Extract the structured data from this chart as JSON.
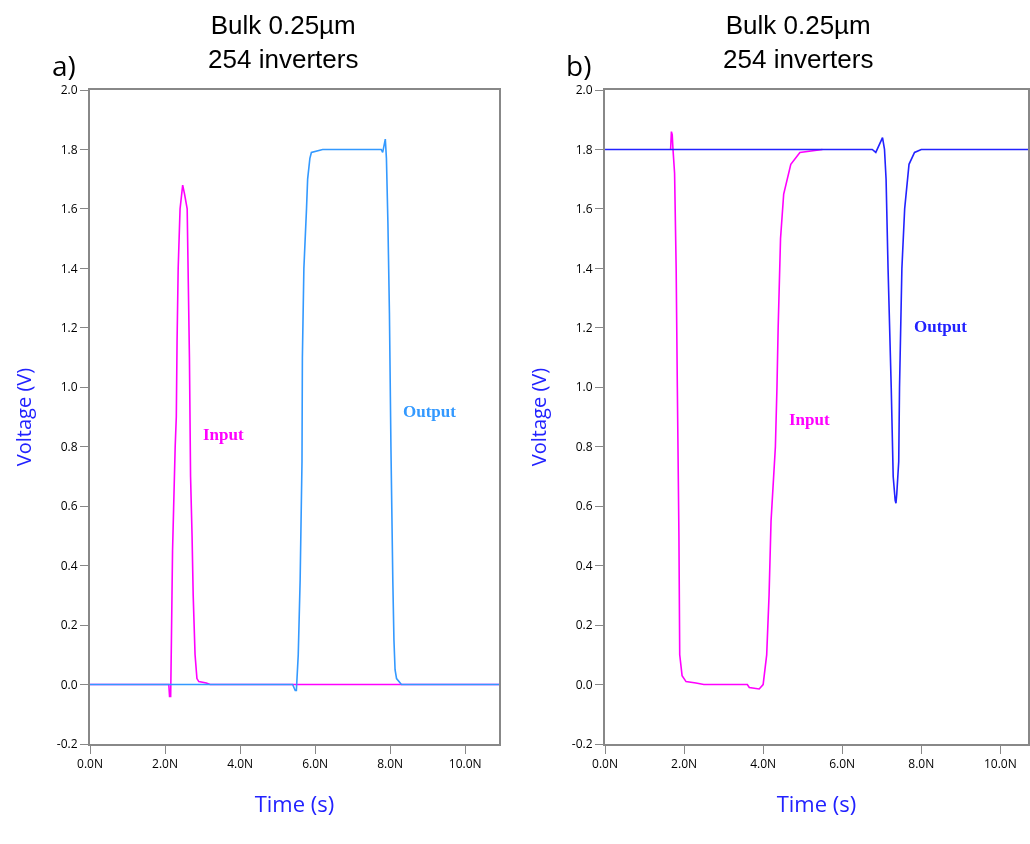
{
  "chart_data": [
    {
      "type": "line",
      "title": "Bulk 0.25µm\n254 inverters",
      "xlabel": "Time (s)",
      "ylabel": "Voltage (V)",
      "annotations": [
        "a)"
      ],
      "xlim": [
        0,
        10.9
      ],
      "ylim": [
        -0.2,
        2.0
      ],
      "xticks": [
        {
          "value": 0,
          "label": "0.0N"
        },
        {
          "value": 2,
          "label": "2.0N"
        },
        {
          "value": 4,
          "label": "4.0N"
        },
        {
          "value": 6,
          "label": "6.0N"
        },
        {
          "value": 8,
          "label": "8.0N"
        },
        {
          "value": 10,
          "label": "10.0N"
        }
      ],
      "yticks": [
        {
          "value": -0.2,
          "label": "-0.2"
        },
        {
          "value": 0,
          "label": "0.0"
        },
        {
          "value": 0.2,
          "label": "0.2"
        },
        {
          "value": 0.4,
          "label": "0.4"
        },
        {
          "value": 0.6,
          "label": "0.6"
        },
        {
          "value": 0.8,
          "label": "0.8"
        },
        {
          "value": 1,
          "label": "1.0"
        },
        {
          "value": 1.2,
          "label": "1.2"
        },
        {
          "value": 1.4,
          "label": "1.4"
        },
        {
          "value": 1.6,
          "label": "1.6"
        },
        {
          "value": 1.8,
          "label": "1.8"
        },
        {
          "value": 2,
          "label": "2.0"
        }
      ],
      "grid": false,
      "legend": false,
      "marker": "none",
      "line_style": "solid",
      "series": [
        {
          "name": "Input",
          "color": "#ff00ff",
          "x": [
            0,
            2.1,
            2.12,
            2.15,
            2.17,
            2.2,
            2.27,
            2.3,
            2.32,
            2.35,
            2.4,
            2.47,
            2.52,
            2.59,
            2.62,
            2.65,
            2.68,
            2.72,
            2.75,
            2.8,
            2.85,
            2.9,
            3.1,
            3.2,
            10.9
          ],
          "values": [
            0,
            0,
            -0.04,
            -0.04,
            0.15,
            0.45,
            0.8,
            0.9,
            1.15,
            1.4,
            1.6,
            1.68,
            1.65,
            1.6,
            1.35,
            1.1,
            0.7,
            0.5,
            0.3,
            0.1,
            0.02,
            0.01,
            0.005,
            0,
            0
          ]
        },
        {
          "name": "Output",
          "color": "#3399ff",
          "x": [
            0,
            5.4,
            5.47,
            5.5,
            5.55,
            5.6,
            5.65,
            5.66,
            5.7,
            5.77,
            5.8,
            5.86,
            5.9,
            6.2,
            7.76,
            7.8,
            7.87,
            7.9,
            7.94,
            7.98,
            8.02,
            8.07,
            8.1,
            8.13,
            8.17,
            8.3,
            10.9
          ],
          "values": [
            0,
            0,
            -0.02,
            -0.02,
            0.1,
            0.35,
            0.75,
            1.1,
            1.4,
            1.6,
            1.7,
            1.77,
            1.79,
            1.8,
            1.8,
            1.79,
            1.835,
            1.77,
            1.55,
            1.25,
            0.8,
            0.35,
            0.15,
            0.05,
            0.02,
            0,
            0
          ]
        }
      ]
    },
    {
      "type": "line",
      "title": "Bulk 0.25µm\n254 inverters",
      "xlabel": "Time (s)",
      "ylabel": "Voltage (V)",
      "annotations": [
        "b)"
      ],
      "xlim": [
        0,
        10.7
      ],
      "ylim": [
        -0.2,
        2.0
      ],
      "xticks": [
        {
          "value": 0,
          "label": "0.0N"
        },
        {
          "value": 2,
          "label": "2.0N"
        },
        {
          "value": 4,
          "label": "4.0N"
        },
        {
          "value": 6,
          "label": "6.0N"
        },
        {
          "value": 8,
          "label": "8.0N"
        },
        {
          "value": 10,
          "label": "10.0N"
        }
      ],
      "yticks": [
        {
          "value": -0.2,
          "label": "-0.2"
        },
        {
          "value": 0,
          "label": "0.0"
        },
        {
          "value": 0.2,
          "label": "0.2"
        },
        {
          "value": 0.4,
          "label": "0.4"
        },
        {
          "value": 0.6,
          "label": "0.6"
        },
        {
          "value": 0.8,
          "label": "0.8"
        },
        {
          "value": 1,
          "label": "1.0"
        },
        {
          "value": 1.2,
          "label": "1.2"
        },
        {
          "value": 1.4,
          "label": "1.4"
        },
        {
          "value": 1.6,
          "label": "1.6"
        },
        {
          "value": 1.8,
          "label": "1.8"
        },
        {
          "value": 2,
          "label": "2.0"
        }
      ],
      "grid": false,
      "legend": false,
      "marker": "none",
      "line_style": "solid",
      "series": [
        {
          "name": "Input",
          "color": "#ff00ff",
          "x": [
            1.66,
            1.68,
            1.7,
            1.72,
            1.76,
            1.8,
            1.83,
            1.87,
            1.89,
            1.95,
            2.05,
            2.3,
            2.5,
            3.6,
            3.65,
            3.9,
            4.0,
            4.09,
            4.15,
            4.2,
            4.31,
            4.35,
            4.38,
            4.44,
            4.52,
            4.7,
            4.93,
            5.5
          ],
          "values": [
            1.8,
            1.86,
            1.85,
            1.8,
            1.72,
            1.4,
            1.0,
            0.5,
            0.1,
            0.03,
            0.01,
            0.005,
            0,
            0,
            -0.01,
            -0.015,
            0,
            0.1,
            0.3,
            0.55,
            0.8,
            1.0,
            1.2,
            1.5,
            1.65,
            1.75,
            1.79,
            1.8
          ]
        },
        {
          "name": "Output",
          "color": "#2222ff",
          "x": [
            0,
            6.76,
            6.85,
            7.02,
            7.07,
            7.11,
            7.16,
            7.24,
            7.29,
            7.34,
            7.36,
            7.38,
            7.43,
            7.45,
            7.51,
            7.58,
            7.69,
            7.83,
            8.0,
            10.7
          ],
          "values": [
            1.8,
            1.8,
            1.79,
            1.84,
            1.8,
            1.7,
            1.4,
            1.0,
            0.7,
            0.62,
            0.61,
            0.64,
            0.75,
            1.0,
            1.4,
            1.6,
            1.75,
            1.79,
            1.8,
            1.8
          ]
        }
      ]
    }
  ]
}
